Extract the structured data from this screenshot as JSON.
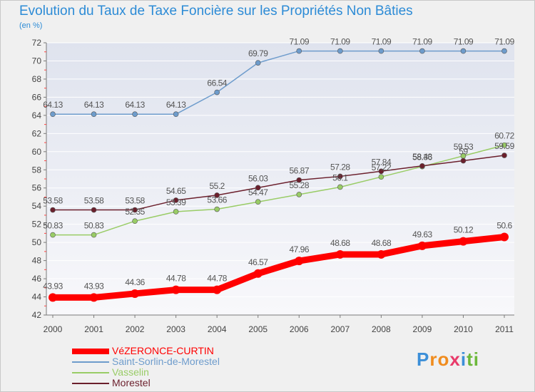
{
  "chart_data": {
    "type": "line",
    "title": "Evolution du Taux de Taxe Foncière sur les Propriétés Non Bâties",
    "ylabel": "(en %)",
    "xlabel": "",
    "ylim": [
      42,
      72
    ],
    "yticks": [
      42,
      44,
      46,
      48,
      50,
      52,
      54,
      56,
      58,
      60,
      62,
      64,
      66,
      68,
      70,
      72
    ],
    "categories": [
      "2000",
      "2001",
      "2002",
      "2003",
      "2004",
      "2005",
      "2006",
      "2007",
      "2008",
      "2009",
      "2010",
      "2011"
    ],
    "grid": "horizontal",
    "legend_position": "bottom-left",
    "series": [
      {
        "name": "VéZERONCE-CURTIN",
        "color": "#ff0000",
        "values": [
          43.93,
          43.93,
          44.36,
          44.78,
          44.78,
          46.57,
          47.96,
          48.68,
          48.68,
          49.63,
          50.12,
          50.6
        ],
        "labels": [
          "43.93",
          "43.93",
          "44.36",
          "44.78",
          "44.78",
          "46.57",
          "47.96",
          "48.68",
          "48.68",
          "49.63",
          "50.12",
          "50.6"
        ]
      },
      {
        "name": "Saint-Sorlin-de-Morestel",
        "color": "#6e9ccc",
        "values": [
          64.13,
          64.13,
          64.13,
          64.13,
          66.54,
          69.79,
          71.09,
          71.09,
          71.09,
          71.09,
          71.09,
          71.09
        ],
        "labels": [
          "64.13",
          "64.13",
          "64.13",
          "64.13",
          "66.54",
          "69.79",
          "71.09",
          "71.09",
          "71.09",
          "71.09",
          "71.09",
          "71.09"
        ]
      },
      {
        "name": "Vasselin",
        "color": "#99cc66",
        "values": [
          50.83,
          50.83,
          52.35,
          53.39,
          53.66,
          54.47,
          55.28,
          56.1,
          57.22,
          58.36,
          59.53,
          60.72
        ],
        "labels": [
          "50.83",
          "50.83",
          "52.35",
          "53.39",
          "53.66",
          "54.47",
          "55.28",
          "56.1",
          "57.22",
          "58.36",
          "59.53",
          "60.72"
        ]
      },
      {
        "name": "Morestel",
        "color": "#6b1f2c",
        "values": [
          53.58,
          53.58,
          53.58,
          54.65,
          55.2,
          56.03,
          56.87,
          57.28,
          57.84,
          58.43,
          59,
          59.59
        ],
        "labels": [
          "53.58",
          "53.58",
          "53.58",
          "54.65",
          "55.2",
          "56.03",
          "56.87",
          "57.28",
          "57.84",
          "58.43",
          "59",
          "59.59"
        ]
      }
    ]
  },
  "brand": {
    "text": "Proxiti",
    "letters": [
      "P",
      "r",
      "o",
      "x",
      "i",
      "t",
      "i"
    ],
    "colors": [
      "#3c8fd8",
      "#f08c1e",
      "#f08c1e",
      "#e83a6a",
      "#3c8fd8",
      "#6cb83a",
      "#6cb83a"
    ]
  }
}
